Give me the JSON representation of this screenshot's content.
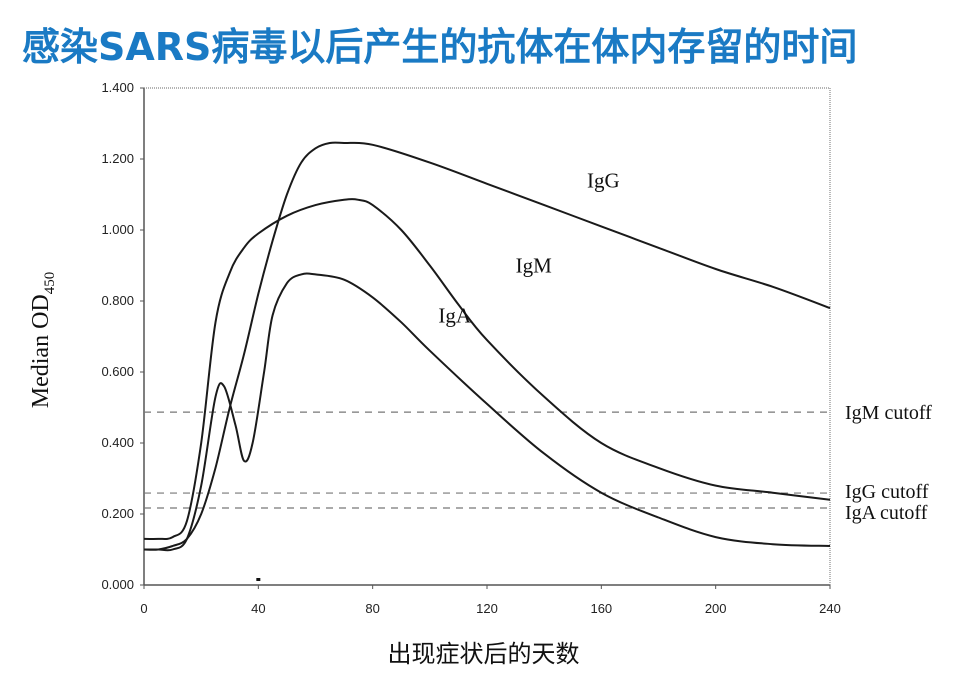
{
  "title": "感染SARS病毒以后产生的抗体在体内存留的时间",
  "chart_data": {
    "type": "line",
    "title": "感染SARS病毒以后产生的抗体在体内存留的时间",
    "xlabel": "出现症状后的天数",
    "ylabel": "Median OD450",
    "ylabel_main": "Median OD",
    "ylabel_sub": "450",
    "xlim": [
      0,
      240
    ],
    "ylim": [
      0,
      1.4
    ],
    "x_ticks": [
      "0",
      "40",
      "80",
      "120",
      "160",
      "200",
      "240"
    ],
    "y_ticks": [
      "0.000",
      "0.200",
      "0.400",
      "0.600",
      "0.800",
      "1.000",
      "1.200",
      "1.400"
    ],
    "grid": false,
    "series": [
      {
        "name": "IgG",
        "x": [
          0,
          5,
          10,
          15,
          20,
          25,
          30,
          35,
          40,
          45,
          50,
          55,
          60,
          65,
          70,
          80,
          100,
          120,
          140,
          160,
          180,
          200,
          220,
          240
        ],
        "y": [
          0.1,
          0.1,
          0.11,
          0.13,
          0.2,
          0.33,
          0.5,
          0.65,
          0.82,
          0.97,
          1.1,
          1.19,
          1.23,
          1.245,
          1.245,
          1.24,
          1.19,
          1.13,
          1.07,
          1.01,
          0.95,
          0.89,
          0.84,
          0.78
        ]
      },
      {
        "name": "IgM",
        "x": [
          0,
          5,
          10,
          15,
          20,
          25,
          30,
          35,
          40,
          50,
          60,
          70,
          75,
          80,
          90,
          100,
          110,
          120,
          140,
          160,
          180,
          200,
          220,
          240
        ],
        "y": [
          0.13,
          0.13,
          0.135,
          0.18,
          0.4,
          0.74,
          0.88,
          0.95,
          0.99,
          1.04,
          1.07,
          1.085,
          1.085,
          1.07,
          1.0,
          0.9,
          0.79,
          0.69,
          0.53,
          0.4,
          0.33,
          0.28,
          0.26,
          0.24
        ]
      },
      {
        "name": "IgA",
        "x": [
          0,
          5,
          10,
          15,
          20,
          25,
          28,
          32,
          35,
          38,
          42,
          45,
          50,
          55,
          60,
          70,
          80,
          90,
          100,
          120,
          140,
          160,
          180,
          200,
          220,
          240
        ],
        "y": [
          0.1,
          0.1,
          0.1,
          0.13,
          0.28,
          0.53,
          0.56,
          0.45,
          0.35,
          0.4,
          0.6,
          0.76,
          0.85,
          0.875,
          0.875,
          0.86,
          0.81,
          0.74,
          0.66,
          0.51,
          0.37,
          0.26,
          0.19,
          0.135,
          0.115,
          0.11
        ]
      }
    ],
    "reference_lines": [
      {
        "name": "IgM cutoff",
        "y": 0.487,
        "style": "dashed"
      },
      {
        "name": "IgG cutoff",
        "y": 0.259,
        "style": "dashed"
      },
      {
        "name": "IgA cutoff",
        "y": 0.217,
        "style": "dashed"
      }
    ],
    "annotations": [
      {
        "text": "IgG",
        "x": 155,
        "y": 1.12
      },
      {
        "text": "IgM",
        "x": 130,
        "y": 0.88
      },
      {
        "text": "IgA",
        "x": 103,
        "y": 0.74
      }
    ]
  }
}
